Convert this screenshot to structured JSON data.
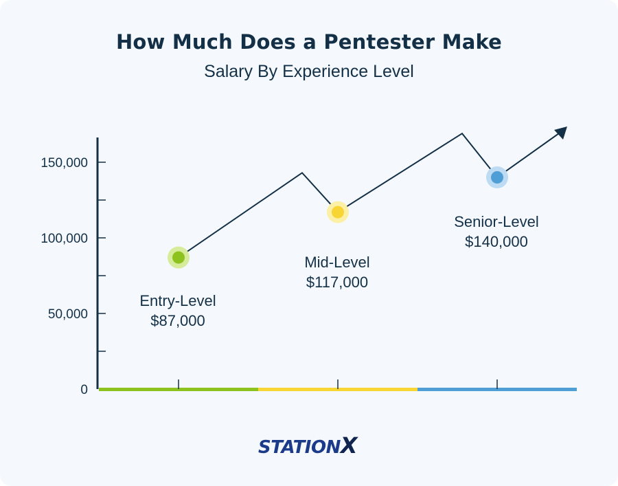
{
  "header": {
    "title": "How Much Does a Pentester Make",
    "subtitle": "Salary By Experience Level"
  },
  "logo": {
    "text": "STATION",
    "x_text": "X"
  },
  "chart_data": {
    "type": "line",
    "title": "How Much Does a Pentester Make",
    "subtitle": "Salary By Experience Level",
    "xlabel": "",
    "ylabel": "",
    "ylim": [
      0,
      160000
    ],
    "yticks": [
      0,
      50000,
      100000,
      150000
    ],
    "ytick_labels": [
      "0",
      "50,000",
      "100,000",
      "150,000"
    ],
    "grid": false,
    "legend": "none",
    "points": [
      {
        "label": "Entry-Level",
        "value_label": "$87,000",
        "value": 87000,
        "color": "#8dc21f",
        "halo": "#d7ec9a"
      },
      {
        "label": "Mid-Level",
        "value_label": "$117,000",
        "value": 117000,
        "color": "#f7d534",
        "halo": "#fcefa6"
      },
      {
        "label": "Senior-Level",
        "value_label": "$140,000",
        "value": 140000,
        "color": "#4f9ed6",
        "halo": "#bddcf3"
      }
    ],
    "trend_line_color": "#143047",
    "band_colors": [
      "#8dc21f",
      "#f7d534",
      "#4f9ed6"
    ]
  }
}
